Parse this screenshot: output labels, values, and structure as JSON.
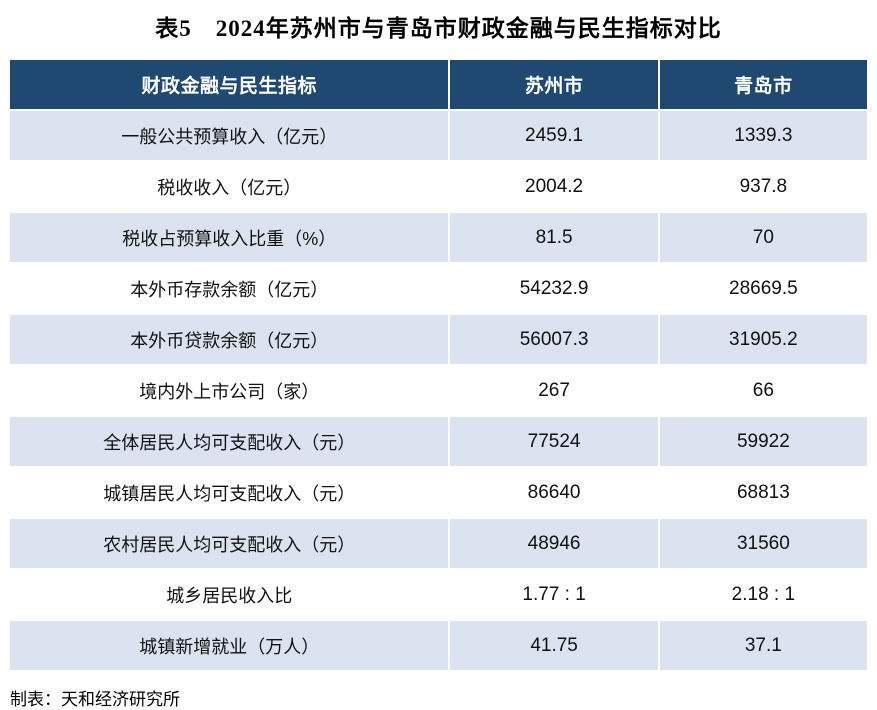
{
  "title": "表5　2024年苏州市与青岛市财政金融与民生指标对比",
  "table": {
    "header": [
      "财政金融与民生指标",
      "苏州市",
      "青岛市"
    ],
    "rows": [
      {
        "label": "一般公共预算收入（亿元）",
        "suzhou": "2459.1",
        "qingdao": "1339.3"
      },
      {
        "label": "税收收入（亿元）",
        "suzhou": "2004.2",
        "qingdao": "937.8"
      },
      {
        "label": "税收占预算收入比重（%）",
        "suzhou": "81.5",
        "qingdao": "70"
      },
      {
        "label": "本外币存款余额（亿元）",
        "suzhou": "54232.9",
        "qingdao": "28669.5"
      },
      {
        "label": "本外币贷款余额（亿元）",
        "suzhou": "56007.3",
        "qingdao": "31905.2"
      },
      {
        "label": "境内外上市公司（家）",
        "suzhou": "267",
        "qingdao": "66"
      },
      {
        "label": "全体居民人均可支配收入（元）",
        "suzhou": "77524",
        "qingdao": "59922"
      },
      {
        "label": "城镇居民人均可支配收入（元）",
        "suzhou": "86640",
        "qingdao": "68813"
      },
      {
        "label": "农村居民人均可支配收入（元）",
        "suzhou": "48946",
        "qingdao": "31560"
      },
      {
        "label": "城乡居民收入比",
        "suzhou": "1.77 : 1",
        "qingdao": "2.18 : 1"
      },
      {
        "label": "城镇新增就业（万人）",
        "suzhou": "41.75",
        "qingdao": "37.1"
      }
    ],
    "colors": {
      "header_bg": "#1F4971",
      "header_text": "#FFFFFF",
      "row_alt_bg": "#DAE3EF",
      "row_bg": "#FFFFFF",
      "text": "#111111"
    }
  },
  "footer": {
    "source": "制表：天和经济研究所"
  }
}
